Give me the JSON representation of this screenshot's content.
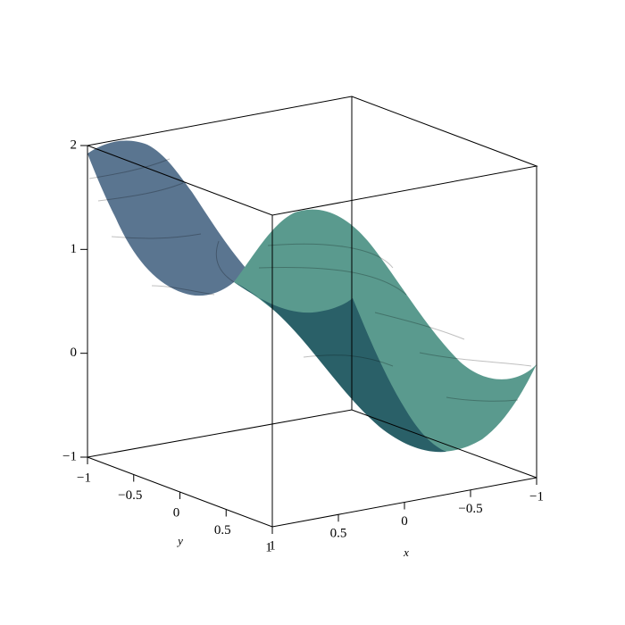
{
  "chart_data": {
    "type": "surface3d",
    "xlabel": "x",
    "ylabel": "y",
    "xlim": [
      -1,
      1
    ],
    "ylim": [
      -1,
      1
    ],
    "zlim": [
      -1,
      2
    ],
    "xticks": [
      {
        "value": -1,
        "label": "−1"
      },
      {
        "value": -0.5,
        "label": "−0.5"
      },
      0,
      0.5,
      1
    ],
    "yticks": [
      {
        "value": -1,
        "label": "−1"
      },
      {
        "value": -0.5,
        "label": "−0.5"
      },
      0,
      0.5,
      1
    ],
    "zticks": [
      {
        "value": -1,
        "label": "−1"
      },
      0,
      1,
      2
    ]
  }
}
